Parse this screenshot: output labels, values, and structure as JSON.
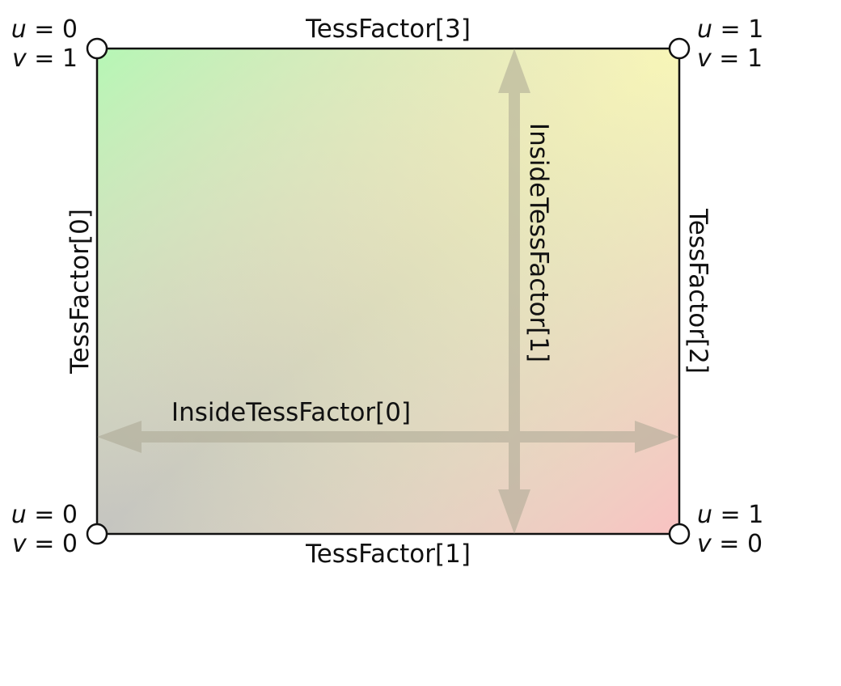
{
  "edges": {
    "top": "TessFactor[3]",
    "bottom": "TessFactor[1]",
    "left": "TessFactor[0]",
    "right": "TessFactor[2]"
  },
  "inside": {
    "horizontal": "InsideTessFactor[0]",
    "vertical": "InsideTessFactor[1]"
  },
  "corners": {
    "top_left": {
      "u_var": "u",
      "u_val": " = 0",
      "v_var": "v",
      "v_val": " = 1"
    },
    "top_right": {
      "u_var": "u",
      "u_val": " = 1",
      "v_var": "v",
      "v_val": " = 1"
    },
    "bottom_left": {
      "u_var": "u",
      "u_val": " = 0",
      "v_var": "v",
      "v_val": " = 0"
    },
    "bottom_right": {
      "u_var": "u",
      "u_val": " = 1",
      "v_var": "v",
      "v_val": " = 0"
    }
  },
  "colors": {
    "top_left": "#b5f7b5",
    "top_right": "#f8f6b8",
    "bottom_left": "#c4c4c0",
    "bottom_right": "#f9c2c2",
    "arrow": "#aca894"
  }
}
